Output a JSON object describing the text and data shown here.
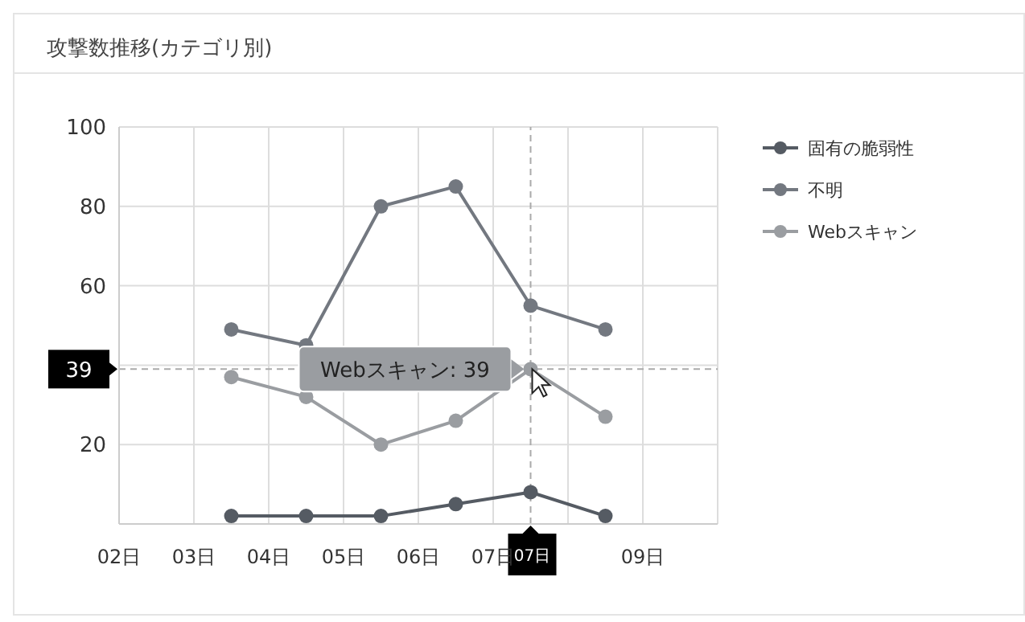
{
  "chart_data": {
    "type": "line",
    "title": "攻撃数推移(カテゴリ別)",
    "x": [
      3.5,
      4.5,
      5.5,
      6.5,
      7.5,
      8.5
    ],
    "series": [
      {
        "name": "固有の脆弱性",
        "color": "#555b63",
        "values": [
          2,
          2,
          2,
          5,
          8,
          2
        ]
      },
      {
        "name": "不明",
        "color": "#737880",
        "values": [
          49,
          45,
          80,
          85,
          55,
          49
        ]
      },
      {
        "name": "Webスキャン",
        "color": "#9a9da1",
        "values": [
          37,
          32,
          20,
          26,
          39,
          27
        ]
      }
    ],
    "xlim": [
      2,
      10
    ],
    "xticks": [
      {
        "value": 2,
        "label": "02日"
      },
      {
        "value": 3,
        "label": "03日"
      },
      {
        "value": 4,
        "label": "04日"
      },
      {
        "value": 5,
        "label": "05日"
      },
      {
        "value": 6,
        "label": "06日"
      },
      {
        "value": 7,
        "label": "07日"
      },
      {
        "value": 8,
        "label": null
      },
      {
        "value": 9,
        "label": "09日"
      },
      {
        "value": 10,
        "label": null
      }
    ],
    "ylim": [
      0,
      100
    ],
    "yticks": [
      20,
      {
        "value": 40,
        "label": null
      },
      60,
      80,
      100
    ],
    "grid": true,
    "legend": "top right",
    "marker": "circle",
    "line_style": "solid",
    "ref_lines": [
      {
        "axis": "x",
        "value": 7.5,
        "label": "07日",
        "color": "#aaaaaa",
        "line_style": "dashed"
      },
      {
        "axis": "y",
        "value": 39,
        "label": "39",
        "color": "#aaaaaa",
        "line_style": "dashed"
      }
    ],
    "annotations": [
      {
        "text": "Webスキャン: 39",
        "x": 7.5,
        "y": 39
      }
    ]
  }
}
